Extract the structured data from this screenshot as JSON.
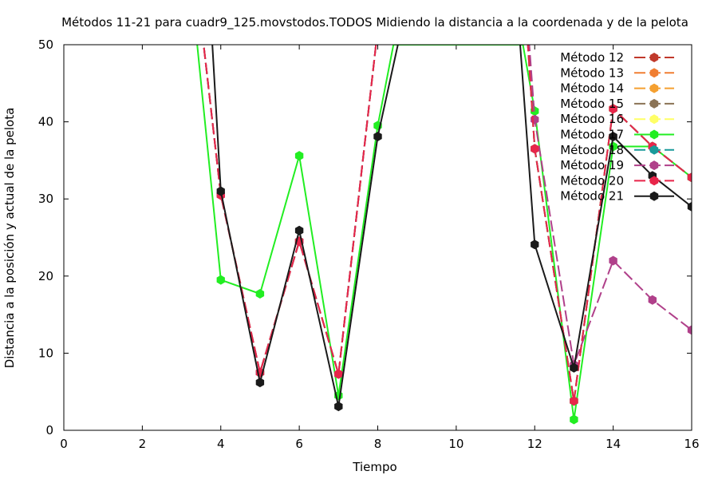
{
  "chart_data": {
    "type": "line",
    "title": "Métodos 11-21 para cuadr9_125.movstodos.TODOS Midiendo la distancia a la coordenada y de la pelota",
    "xlabel": "Tiempo",
    "ylabel": "Distancia a la posición y actual de la pelota",
    "xlim": [
      0,
      16
    ],
    "ylim": [
      0,
      50
    ],
    "xticks": [
      "0",
      "2",
      "4",
      "6",
      "8",
      "10",
      "12",
      "14",
      "16"
    ],
    "yticks": [
      "0",
      "10",
      "20",
      "30",
      "40",
      "50"
    ],
    "grid": false,
    "legend_position": "top-right",
    "series": [
      {
        "name": "Método 12",
        "color": "#c0392b",
        "dashed": true,
        "points": [
          [
            3,
            75
          ],
          [
            4,
            30.5
          ],
          [
            5,
            7.5
          ],
          [
            6,
            24.5
          ],
          [
            7,
            7.3
          ],
          [
            8,
            52
          ],
          [
            11.5,
            75
          ],
          [
            12,
            36.5
          ],
          [
            13,
            3.8
          ],
          [
            14,
            41.7
          ],
          [
            15,
            36.8
          ],
          [
            16,
            32.8
          ]
        ]
      },
      {
        "name": "Método 13",
        "color": "#f07e32",
        "dashed": true,
        "points": [
          [
            3,
            75
          ],
          [
            4,
            30.5
          ],
          [
            5,
            7.5
          ],
          [
            6,
            24.5
          ],
          [
            7,
            7.3
          ],
          [
            8,
            52
          ],
          [
            11.5,
            75
          ],
          [
            12,
            36.5
          ],
          [
            13,
            3.8
          ],
          [
            14,
            41.7
          ],
          [
            15,
            36.8
          ],
          [
            16,
            32.8
          ]
        ]
      },
      {
        "name": "Método 14",
        "color": "#f5a030",
        "dashed": true,
        "points": [
          [
            3,
            75
          ],
          [
            4,
            30.5
          ],
          [
            5,
            7.5
          ],
          [
            6,
            24.5
          ],
          [
            7,
            7.3
          ],
          [
            8,
            52
          ],
          [
            11.5,
            75
          ],
          [
            12,
            36.5
          ],
          [
            13,
            3.8
          ],
          [
            14,
            41.7
          ],
          [
            15,
            36.8
          ],
          [
            16,
            32.8
          ]
        ]
      },
      {
        "name": "Método 15",
        "color": "#8b7355",
        "dashed": true,
        "points": [
          [
            3,
            75
          ],
          [
            4,
            30.5
          ],
          [
            5,
            7.5
          ],
          [
            6,
            24.5
          ],
          [
            7,
            7.3
          ],
          [
            8,
            52
          ],
          [
            11.5,
            75
          ],
          [
            12,
            36.5
          ],
          [
            13,
            3.8
          ],
          [
            14,
            41.7
          ],
          [
            15,
            36.8
          ],
          [
            16,
            32.8
          ]
        ]
      },
      {
        "name": "Método 16",
        "color": "#ffff66",
        "dashed": true,
        "points": [
          [
            3,
            75
          ],
          [
            4,
            30.5
          ],
          [
            5,
            7.5
          ],
          [
            6,
            24.5
          ],
          [
            7,
            7.3
          ],
          [
            8,
            52
          ],
          [
            11.5,
            75
          ],
          [
            12,
            36.5
          ],
          [
            13,
            3.8
          ],
          [
            14,
            41.7
          ],
          [
            15,
            36.8
          ],
          [
            16,
            32.8
          ]
        ]
      },
      {
        "name": "Método 17",
        "color": "#22ee22",
        "dashed": false,
        "points": [
          [
            3.4,
            50
          ],
          [
            4,
            19.5
          ],
          [
            5,
            17.7
          ],
          [
            6,
            35.6
          ],
          [
            7,
            4.5
          ],
          [
            8,
            39.5
          ],
          [
            8.4,
            50
          ],
          [
            11.7,
            50
          ],
          [
            12,
            41.4
          ],
          [
            13,
            1.4
          ],
          [
            14,
            36.8
          ],
          [
            15,
            36.8
          ],
          [
            16,
            32.8
          ]
        ]
      },
      {
        "name": "Método 18",
        "color": "#1a9a9a",
        "dashed": true,
        "points": [
          [
            3,
            75
          ],
          [
            4,
            30.5
          ],
          [
            5,
            7.5
          ],
          [
            6,
            24.5
          ],
          [
            7,
            7.3
          ],
          [
            8,
            52
          ],
          [
            11.5,
            75
          ],
          [
            12,
            36.5
          ],
          [
            13,
            3.8
          ],
          [
            14,
            41.7
          ],
          [
            15,
            36.8
          ],
          [
            16,
            32.8
          ]
        ]
      },
      {
        "name": "Método 19",
        "color": "#b0408a",
        "dashed": true,
        "points": [
          [
            3,
            75
          ],
          [
            4,
            30.5
          ],
          [
            5,
            7.5
          ],
          [
            6,
            24.5
          ],
          [
            7,
            7.3
          ],
          [
            8,
            52
          ],
          [
            11.5,
            75
          ],
          [
            12,
            40.3
          ],
          [
            13,
            8.5
          ],
          [
            14,
            22
          ],
          [
            15,
            16.9
          ],
          [
            16,
            13
          ]
        ]
      },
      {
        "name": "Método 20",
        "color": "#e8254a",
        "dashed": true,
        "points": [
          [
            3,
            75
          ],
          [
            4,
            30.5
          ],
          [
            5,
            7.5
          ],
          [
            6,
            24.5
          ],
          [
            7,
            7.3
          ],
          [
            8,
            52
          ],
          [
            11.5,
            75
          ],
          [
            12,
            36.5
          ],
          [
            13,
            3.8
          ],
          [
            14,
            41.7
          ],
          [
            15,
            36.8
          ],
          [
            16,
            32.8
          ]
        ]
      },
      {
        "name": "Método 21",
        "color": "#1a1a1a",
        "dashed": false,
        "points": [
          [
            3.5,
            75
          ],
          [
            4,
            31
          ],
          [
            5,
            6.2
          ],
          [
            6,
            25.9
          ],
          [
            7,
            3.1
          ],
          [
            8,
            38.1
          ],
          [
            8.6,
            52
          ],
          [
            11.6,
            52
          ],
          [
            12,
            24.1
          ],
          [
            13,
            8.1
          ],
          [
            14,
            38.1
          ],
          [
            15,
            33
          ],
          [
            16,
            29
          ]
        ]
      }
    ]
  }
}
